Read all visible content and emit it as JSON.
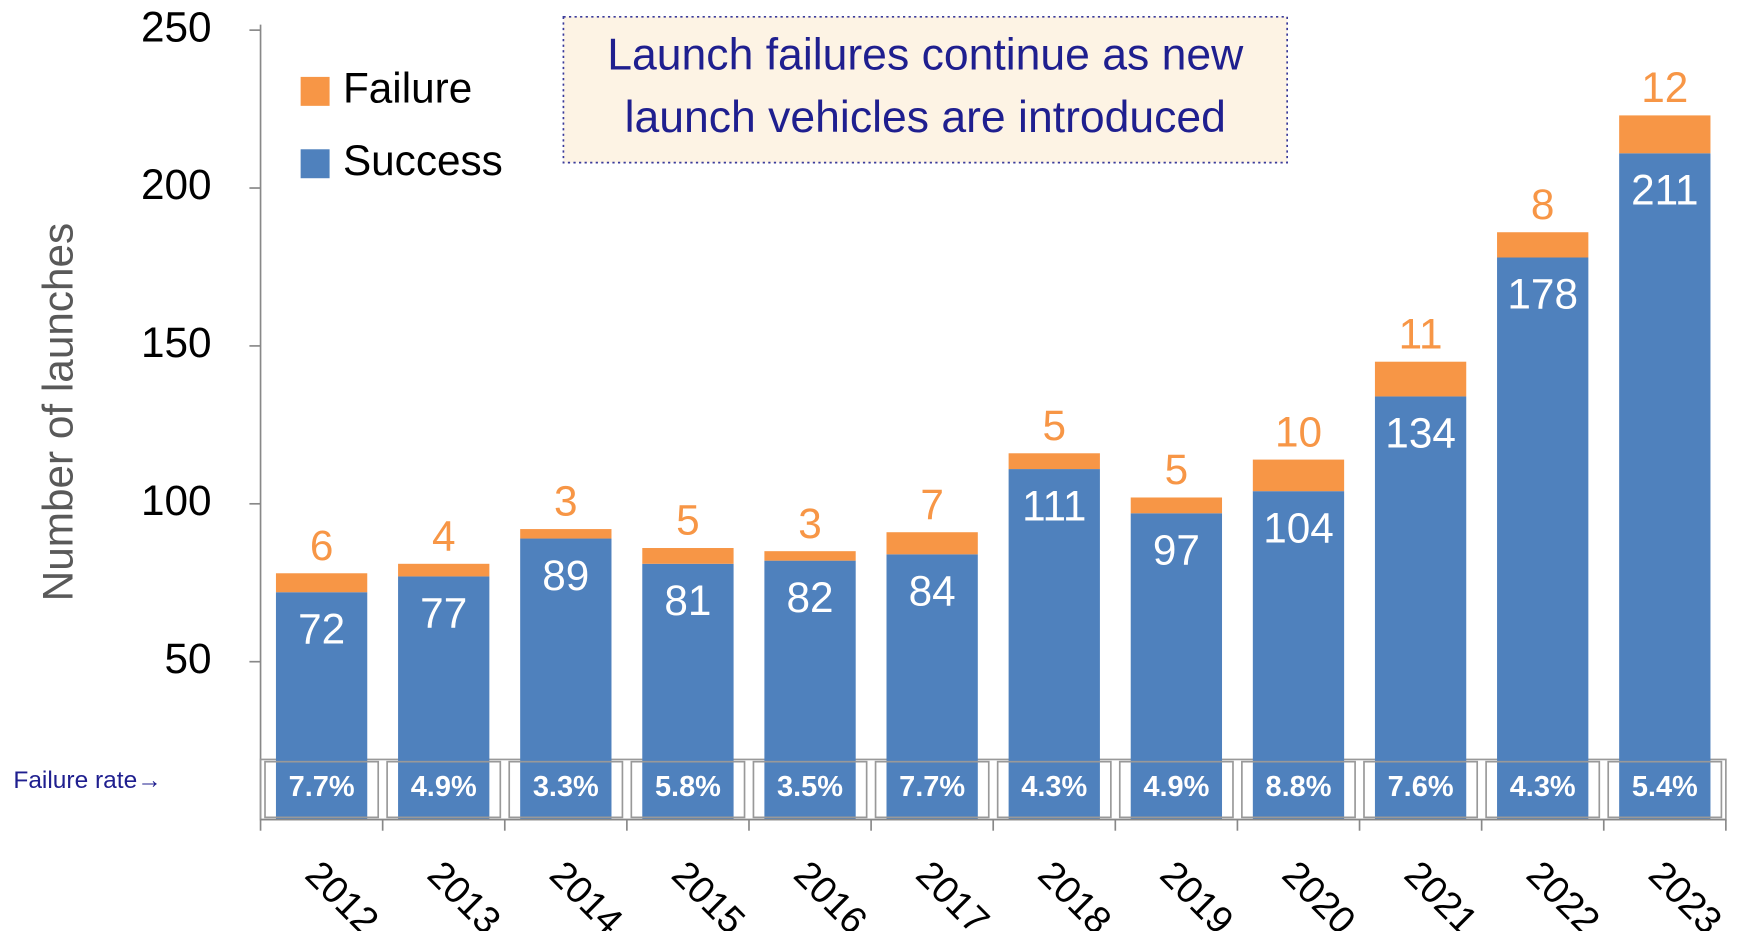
{
  "chart_data": {
    "type": "stacked_bar",
    "title_lines": [
      "Launch failures continue as new",
      "launch vehicles are introduced"
    ],
    "ylabel": "Number of launches",
    "categories": [
      "2012",
      "2013",
      "2014",
      "2015",
      "2016",
      "2017",
      "2018",
      "2019",
      "2020",
      "2021",
      "2022",
      "2023"
    ],
    "series": [
      {
        "name": "Success",
        "color": "#4f81bd",
        "values": [
          72,
          77,
          89,
          81,
          82,
          84,
          111,
          97,
          104,
          134,
          178,
          211
        ]
      },
      {
        "name": "Failure",
        "color": "#f79646",
        "values": [
          6,
          4,
          3,
          5,
          3,
          7,
          5,
          5,
          10,
          11,
          8,
          12
        ]
      }
    ],
    "failure_rate": {
      "label": "Failure rate→",
      "values": [
        7.7,
        4.9,
        3.3,
        5.8,
        3.5,
        7.7,
        4.3,
        4.9,
        8.8,
        7.6,
        4.3,
        5.4
      ],
      "value_labels": [
        "7.7%",
        "4.9%",
        "3.3%",
        "5.8%",
        "3.5%",
        "7.7%",
        "4.3%",
        "4.9%",
        "8.8%",
        "7.6%",
        "4.3%",
        "5.4%"
      ]
    },
    "ylim": [
      0,
      250
    ],
    "yticks": [
      50,
      100,
      150,
      200,
      250
    ],
    "legend": "upper left"
  }
}
